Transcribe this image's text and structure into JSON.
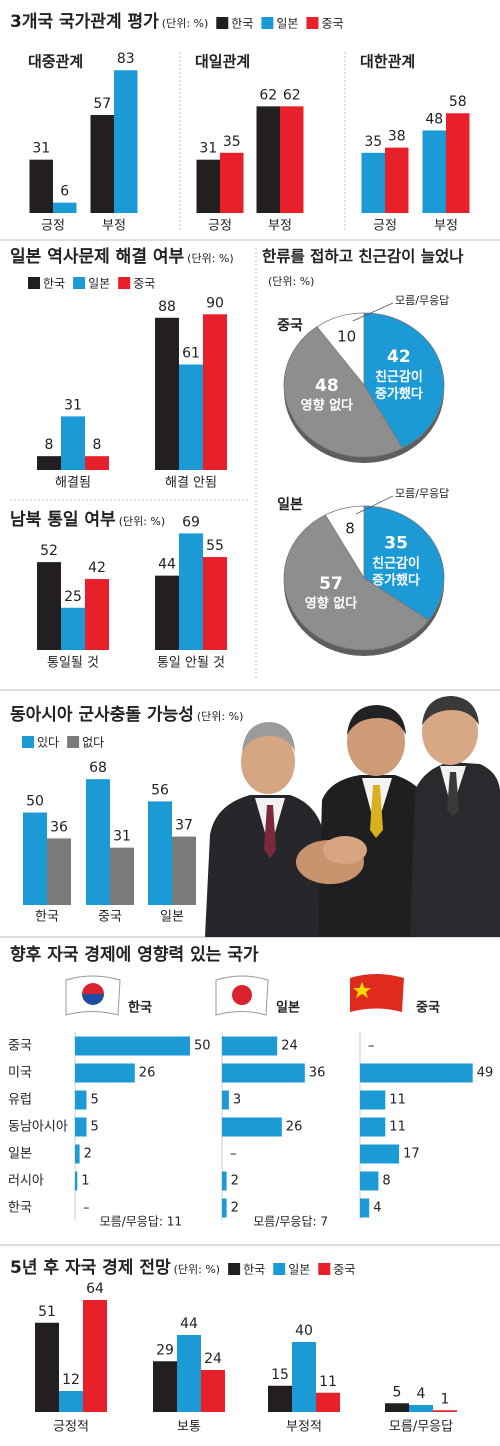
{
  "chart_data": [
    {
      "type": "bar",
      "title": "3개국 국가관계 평가",
      "unit": "(단위: %)",
      "legend": [
        {
          "name": "한국",
          "color": "#231f20"
        },
        {
          "name": "일본",
          "color": "#1c9ad6"
        },
        {
          "name": "중국",
          "color": "#e8202a"
        }
      ],
      "panels": [
        {
          "title": "대중관계",
          "categories": [
            "긍정",
            "부정"
          ],
          "series": [
            {
              "color": "#231f20",
              "values": [
                31,
                57
              ]
            },
            {
              "color": "#1c9ad6",
              "values": [
                6,
                83
              ]
            }
          ]
        },
        {
          "title": "대일관계",
          "categories": [
            "긍정",
            "부정"
          ],
          "series": [
            {
              "color": "#231f20",
              "values": [
                31,
                62
              ]
            },
            {
              "color": "#e8202a",
              "values": [
                35,
                62
              ]
            }
          ]
        },
        {
          "title": "대한관계",
          "categories": [
            "긍정",
            "부정"
          ],
          "series": [
            {
              "color": "#1c9ad6",
              "values": [
                35,
                48
              ]
            },
            {
              "color": "#e8202a",
              "values": [
                38,
                58
              ]
            }
          ]
        }
      ]
    },
    {
      "type": "bar",
      "title": "일본 역사문제 해결 여부",
      "unit": "(단위: %)",
      "legend": [
        {
          "name": "한국",
          "color": "#231f20"
        },
        {
          "name": "일본",
          "color": "#1c9ad6"
        },
        {
          "name": "중국",
          "color": "#e8202a"
        }
      ],
      "panels": [
        {
          "categories": [
            "해결됨",
            "해결 안됨"
          ],
          "series": [
            {
              "color": "#231f20",
              "values": [
                8,
                88
              ]
            },
            {
              "color": "#1c9ad6",
              "values": [
                31,
                61
              ]
            },
            {
              "color": "#e8202a",
              "values": [
                8,
                90
              ]
            }
          ]
        }
      ]
    },
    {
      "type": "bar",
      "title": "남북 통일 여부",
      "unit": "(단위: %)",
      "panels": [
        {
          "categories": [
            "통일될 것",
            "통일 안될 것"
          ],
          "series": [
            {
              "color": "#231f20",
              "values": [
                52,
                44
              ]
            },
            {
              "color": "#1c9ad6",
              "values": [
                25,
                69
              ]
            },
            {
              "color": "#e8202a",
              "values": [
                42,
                55
              ]
            }
          ]
        }
      ]
    },
    {
      "type": "pie",
      "title": "한류를 접하고 친근감이 늘었나",
      "unit": "(단위: %)",
      "pies": [
        {
          "name": "중국",
          "slices": [
            {
              "label": "친근감이 증가했다",
              "value": 42,
              "color": "#1c9ad6"
            },
            {
              "label": "영향 없다",
              "value": 48,
              "color": "#8e8e8e"
            },
            {
              "label": "모름/무응답",
              "value": 10,
              "color": "#ffffff"
            }
          ]
        },
        {
          "name": "일본",
          "slices": [
            {
              "label": "친근감이 증가했다",
              "value": 35,
              "color": "#1c9ad6"
            },
            {
              "label": "영향 없다",
              "value": 57,
              "color": "#8e8e8e"
            },
            {
              "label": "모름/무응답",
              "value": 8,
              "color": "#ffffff"
            }
          ]
        }
      ]
    },
    {
      "type": "bar",
      "title": "동아시아 군사충돌 가능성",
      "unit": "(단위: %)",
      "legend": [
        {
          "name": "있다",
          "color": "#1c9ad6"
        },
        {
          "name": "없다",
          "color": "#7b7b7b"
        }
      ],
      "panels": [
        {
          "categories": [
            "한국",
            "중국",
            "일본"
          ],
          "series": [
            {
              "color": "#1c9ad6",
              "values": [
                50,
                68,
                56
              ]
            },
            {
              "color": "#7b7b7b",
              "values": [
                36,
                31,
                37
              ]
            }
          ]
        }
      ]
    },
    {
      "type": "hbar",
      "title": "향후 자국 경제에 영향력 있는 국가",
      "color": "#1c9ad6",
      "missing_label": "–",
      "categories": [
        "중국",
        "미국",
        "유럽",
        "동남아시아",
        "일본",
        "러시아",
        "한국"
      ],
      "panels": [
        {
          "name": "한국",
          "values": [
            50,
            26,
            5,
            5,
            2,
            1,
            null
          ],
          "note": "모름/무응답: 11"
        },
        {
          "name": "일본",
          "values": [
            24,
            36,
            3,
            26,
            null,
            2,
            2
          ],
          "note": "모름/무응답: 7"
        },
        {
          "name": "중국",
          "values": [
            null,
            49,
            11,
            11,
            17,
            8,
            4
          ]
        }
      ]
    },
    {
      "type": "bar",
      "title": "5년 후 자국 경제 전망",
      "unit": "(단위: %)",
      "legend": [
        {
          "name": "한국",
          "color": "#231f20"
        },
        {
          "name": "일본",
          "color": "#1c9ad6"
        },
        {
          "name": "중국",
          "color": "#e8202a"
        }
      ],
      "panels": [
        {
          "categories": [
            "긍정적",
            "보통",
            "부정적",
            "모름/무응답"
          ],
          "series": [
            {
              "color": "#231f20",
              "values": [
                51,
                29,
                15,
                5
              ]
            },
            {
              "color": "#1c9ad6",
              "values": [
                12,
                44,
                40,
                4
              ]
            },
            {
              "color": "#e8202a",
              "values": [
                64,
                24,
                11,
                1
              ]
            }
          ]
        }
      ]
    }
  ]
}
